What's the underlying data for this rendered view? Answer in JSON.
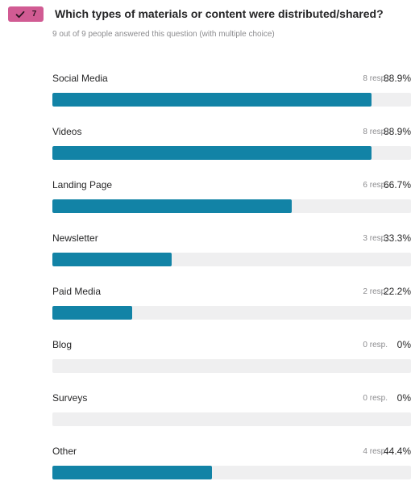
{
  "question": {
    "number": "7",
    "title": "Which types of materials or content were distributed/shared?",
    "summary": "9 out of 9 people answered this question (with multiple choice)"
  },
  "colors": {
    "badge": "#d15b93",
    "bar_fill": "#1283a6",
    "bar_track": "#efeff0"
  },
  "icons": {
    "badge": "check-icon"
  },
  "options": [
    {
      "label": "Social Media",
      "responses": "8 resp.",
      "percent": "88.9%",
      "fraction": 0.889
    },
    {
      "label": "Videos",
      "responses": "8 resp.",
      "percent": "88.9%",
      "fraction": 0.889
    },
    {
      "label": "Landing Page",
      "responses": "6 resp.",
      "percent": "66.7%",
      "fraction": 0.667
    },
    {
      "label": "Newsletter",
      "responses": "3 resp.",
      "percent": "33.3%",
      "fraction": 0.333
    },
    {
      "label": "Paid Media",
      "responses": "2 resp.",
      "percent": "22.2%",
      "fraction": 0.222
    },
    {
      "label": "Blog",
      "responses": "0 resp.",
      "percent": "0%",
      "fraction": 0
    },
    {
      "label": "Surveys",
      "responses": "0 resp.",
      "percent": "0%",
      "fraction": 0
    },
    {
      "label": "Other",
      "responses": "4 resp.",
      "percent": "44.4%",
      "fraction": 0.444
    }
  ]
}
